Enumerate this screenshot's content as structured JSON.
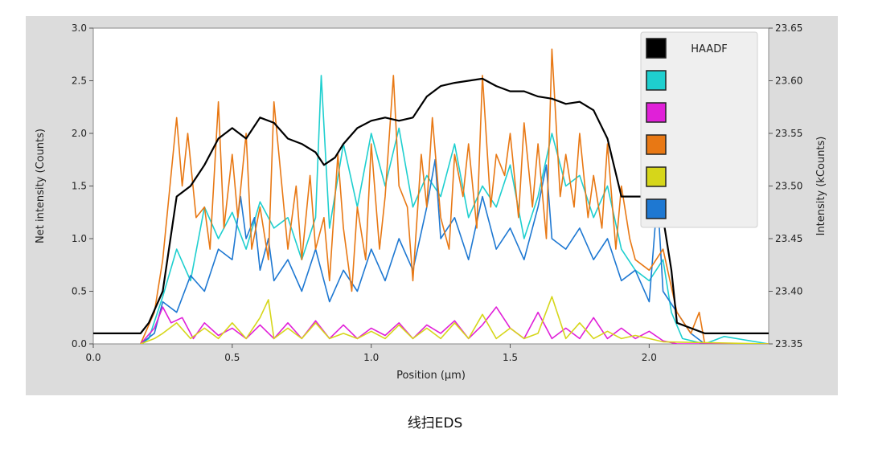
{
  "caption": "线扫EDS",
  "chart_data": {
    "type": "line",
    "xlabel": "Position (μm)",
    "ylabel": "Net intensity (Counts)",
    "y2label": "Intensity (kCounts)",
    "xlim": [
      0,
      2.43
    ],
    "ylim": [
      0,
      3.0
    ],
    "y2lim": [
      23.35,
      23.65
    ],
    "xticks": [
      "0.0",
      "0.5",
      "1.0",
      "1.5",
      "2.0"
    ],
    "yticks": [
      "0.0",
      "0.5",
      "1.0",
      "1.5",
      "2.0",
      "2.5",
      "3.0"
    ],
    "y2ticks": [
      "23.35",
      "23.40",
      "23.45",
      "23.50",
      "23.55",
      "23.60",
      "23.65"
    ],
    "legend_position": "top-right",
    "grid": false,
    "series": [
      {
        "name": "HAADF",
        "axis": "right",
        "color": "#000000",
        "x": [
          0,
          0.1,
          0.17,
          0.2,
          0.25,
          0.3,
          0.35,
          0.4,
          0.45,
          0.5,
          0.55,
          0.6,
          0.65,
          0.7,
          0.75,
          0.8,
          0.83,
          0.87,
          0.9,
          0.95,
          1.0,
          1.05,
          1.1,
          1.15,
          1.2,
          1.25,
          1.3,
          1.35,
          1.4,
          1.45,
          1.5,
          1.55,
          1.6,
          1.65,
          1.7,
          1.75,
          1.8,
          1.85,
          1.9,
          1.95,
          2.0,
          2.05,
          2.08,
          2.1,
          2.15,
          2.2,
          2.3,
          2.43
        ],
        "y": [
          23.36,
          23.36,
          23.36,
          23.37,
          23.4,
          23.49,
          23.5,
          23.52,
          23.545,
          23.555,
          23.545,
          23.565,
          23.56,
          23.545,
          23.54,
          23.532,
          23.52,
          23.527,
          23.54,
          23.555,
          23.562,
          23.565,
          23.562,
          23.565,
          23.585,
          23.595,
          23.598,
          23.6,
          23.602,
          23.595,
          23.59,
          23.59,
          23.585,
          23.583,
          23.578,
          23.58,
          23.572,
          23.545,
          23.49,
          23.49,
          23.49,
          23.47,
          23.42,
          23.37,
          23.365,
          23.36,
          23.36,
          23.36
        ]
      },
      {
        "name": "",
        "color": "#1ecfcf",
        "x": [
          0.17,
          0.2,
          0.25,
          0.3,
          0.35,
          0.4,
          0.45,
          0.5,
          0.55,
          0.6,
          0.65,
          0.7,
          0.75,
          0.8,
          0.82,
          0.85,
          0.9,
          0.95,
          1.0,
          1.05,
          1.1,
          1.15,
          1.2,
          1.25,
          1.3,
          1.35,
          1.4,
          1.45,
          1.5,
          1.55,
          1.6,
          1.65,
          1.7,
          1.75,
          1.8,
          1.85,
          1.9,
          1.95,
          2.0,
          2.05,
          2.08,
          2.12,
          2.2,
          2.27,
          2.43
        ],
        "y": [
          0,
          0.05,
          0.45,
          0.9,
          0.6,
          1.3,
          1.0,
          1.25,
          0.9,
          1.35,
          1.1,
          1.2,
          0.8,
          1.2,
          2.55,
          1.1,
          1.9,
          1.3,
          2.0,
          1.5,
          2.05,
          1.3,
          1.6,
          1.4,
          1.9,
          1.2,
          1.5,
          1.3,
          1.7,
          1.0,
          1.4,
          2.0,
          1.5,
          1.6,
          1.2,
          1.5,
          0.9,
          0.7,
          0.6,
          0.8,
          0.3,
          0.05,
          0,
          0.07,
          0
        ]
      },
      {
        "name": "",
        "color": "#e020d8",
        "x": [
          0.17,
          0.22,
          0.25,
          0.28,
          0.32,
          0.36,
          0.4,
          0.45,
          0.5,
          0.55,
          0.6,
          0.65,
          0.7,
          0.75,
          0.8,
          0.85,
          0.9,
          0.95,
          1.0,
          1.05,
          1.1,
          1.15,
          1.2,
          1.25,
          1.3,
          1.35,
          1.4,
          1.45,
          1.5,
          1.55,
          1.6,
          1.65,
          1.7,
          1.75,
          1.8,
          1.85,
          1.9,
          1.95,
          2.0,
          2.05,
          2.1,
          2.43
        ],
        "y": [
          0,
          0.15,
          0.35,
          0.2,
          0.25,
          0.05,
          0.2,
          0.08,
          0.15,
          0.05,
          0.18,
          0.05,
          0.2,
          0.05,
          0.22,
          0.05,
          0.18,
          0.05,
          0.15,
          0.08,
          0.2,
          0.05,
          0.18,
          0.1,
          0.22,
          0.05,
          0.18,
          0.35,
          0.15,
          0.05,
          0.3,
          0.05,
          0.15,
          0.05,
          0.25,
          0.05,
          0.15,
          0.05,
          0.12,
          0.03,
          0,
          0
        ]
      },
      {
        "name": "",
        "color": "#e87814",
        "x": [
          0.17,
          0.22,
          0.25,
          0.3,
          0.32,
          0.34,
          0.37,
          0.4,
          0.42,
          0.45,
          0.47,
          0.5,
          0.52,
          0.55,
          0.57,
          0.6,
          0.63,
          0.65,
          0.7,
          0.73,
          0.75,
          0.78,
          0.8,
          0.83,
          0.85,
          0.88,
          0.9,
          0.93,
          0.95,
          0.98,
          1.0,
          1.03,
          1.05,
          1.08,
          1.1,
          1.13,
          1.15,
          1.18,
          1.2,
          1.22,
          1.25,
          1.28,
          1.3,
          1.33,
          1.35,
          1.38,
          1.4,
          1.43,
          1.45,
          1.48,
          1.5,
          1.53,
          1.55,
          1.58,
          1.6,
          1.63,
          1.65,
          1.68,
          1.7,
          1.73,
          1.75,
          1.78,
          1.8,
          1.83,
          1.85,
          1.88,
          1.9,
          1.93,
          1.95,
          2.0,
          2.05,
          2.1,
          2.15,
          2.18,
          2.2,
          2.43
        ],
        "y": [
          0,
          0.3,
          0.8,
          2.15,
          1.5,
          2.0,
          1.2,
          1.3,
          0.9,
          2.3,
          1.1,
          1.8,
          1.2,
          2.0,
          0.9,
          1.3,
          0.8,
          2.3,
          0.9,
          1.5,
          0.8,
          1.6,
          0.9,
          1.2,
          0.6,
          1.8,
          1.1,
          0.5,
          1.3,
          0.8,
          1.9,
          0.9,
          1.4,
          2.55,
          1.5,
          1.3,
          0.6,
          1.8,
          1.3,
          2.15,
          1.2,
          0.9,
          1.8,
          1.4,
          1.9,
          1.1,
          2.55,
          1.3,
          1.8,
          1.6,
          2.0,
          1.2,
          2.1,
          1.3,
          1.9,
          1.0,
          2.8,
          1.4,
          1.8,
          1.3,
          2.0,
          1.2,
          1.6,
          1.1,
          1.9,
          0.9,
          1.5,
          1.0,
          0.8,
          0.7,
          0.9,
          0.3,
          0.1,
          0.3,
          0,
          0
        ]
      },
      {
        "name": "",
        "color": "#d6d61a",
        "x": [
          0.17,
          0.22,
          0.25,
          0.3,
          0.35,
          0.4,
          0.45,
          0.5,
          0.55,
          0.6,
          0.63,
          0.65,
          0.7,
          0.75,
          0.8,
          0.85,
          0.9,
          0.95,
          1.0,
          1.05,
          1.1,
          1.15,
          1.2,
          1.25,
          1.3,
          1.35,
          1.4,
          1.45,
          1.5,
          1.55,
          1.6,
          1.65,
          1.7,
          1.75,
          1.8,
          1.85,
          1.9,
          1.95,
          2.0,
          2.05,
          2.43
        ],
        "y": [
          0,
          0.05,
          0.1,
          0.2,
          0.05,
          0.15,
          0.05,
          0.2,
          0.05,
          0.25,
          0.42,
          0.05,
          0.15,
          0.05,
          0.2,
          0.05,
          0.1,
          0.05,
          0.12,
          0.05,
          0.18,
          0.05,
          0.15,
          0.05,
          0.2,
          0.05,
          0.28,
          0.05,
          0.15,
          0.05,
          0.1,
          0.45,
          0.05,
          0.2,
          0.05,
          0.12,
          0.05,
          0.08,
          0.05,
          0.02,
          0
        ]
      },
      {
        "name": "",
        "color": "#1e78d2",
        "x": [
          0.17,
          0.22,
          0.25,
          0.3,
          0.35,
          0.4,
          0.45,
          0.5,
          0.53,
          0.55,
          0.58,
          0.6,
          0.63,
          0.65,
          0.7,
          0.75,
          0.8,
          0.85,
          0.9,
          0.95,
          1.0,
          1.05,
          1.1,
          1.15,
          1.2,
          1.23,
          1.25,
          1.3,
          1.35,
          1.4,
          1.45,
          1.5,
          1.55,
          1.6,
          1.63,
          1.65,
          1.7,
          1.75,
          1.8,
          1.85,
          1.9,
          1.95,
          2.0,
          2.03,
          2.05,
          2.1,
          2.15,
          2.2,
          2.43
        ],
        "y": [
          0,
          0.1,
          0.4,
          0.3,
          0.65,
          0.5,
          0.9,
          0.8,
          1.4,
          1.0,
          1.2,
          0.7,
          1.0,
          0.6,
          0.8,
          0.5,
          0.9,
          0.4,
          0.7,
          0.5,
          0.9,
          0.6,
          1.0,
          0.7,
          1.3,
          1.75,
          1.0,
          1.2,
          0.8,
          1.4,
          0.9,
          1.1,
          0.8,
          1.3,
          1.7,
          1.0,
          0.9,
          1.1,
          0.8,
          1.0,
          0.6,
          0.7,
          0.4,
          1.4,
          0.5,
          0.3,
          0.1,
          0,
          0
        ]
      }
    ]
  }
}
